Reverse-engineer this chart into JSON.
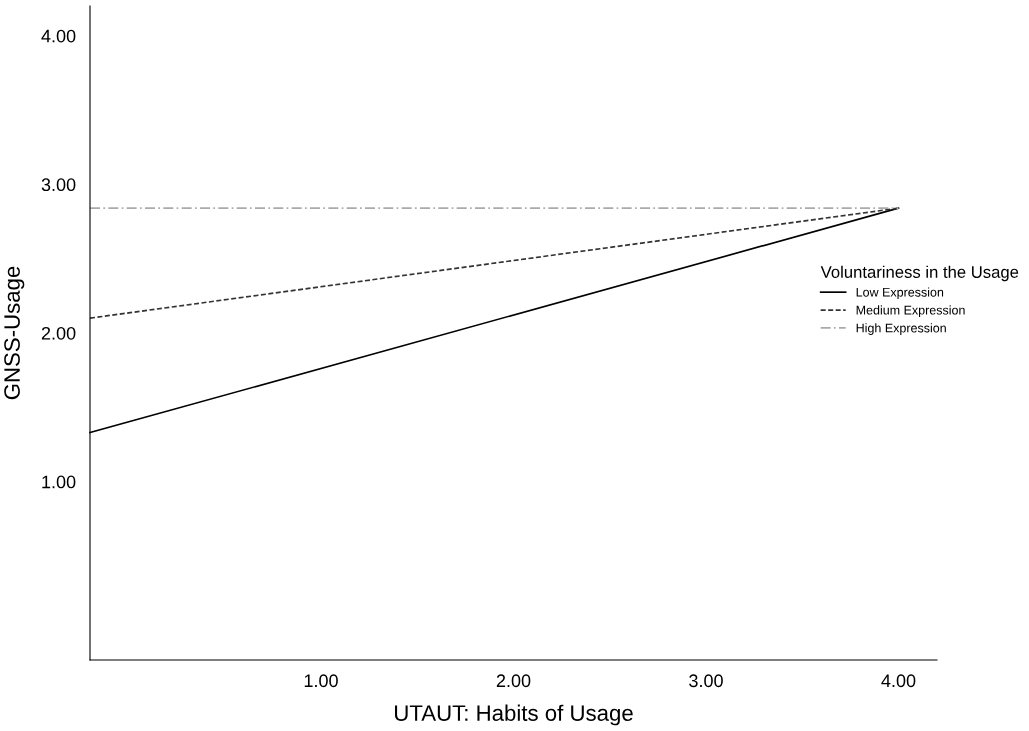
{
  "chart_data": {
    "type": "line",
    "xlabel": "UTAUT: Habits of Usage",
    "ylabel": "GNSS-Usage",
    "legend_title": "Voluntariness in the Usage",
    "xlim": [
      -0.2,
      4.2
    ],
    "ylim": [
      -0.2,
      4.2
    ],
    "xticks": [
      {
        "value": 1,
        "label": "1.00"
      },
      {
        "value": 2,
        "label": "2.00"
      },
      {
        "value": 3,
        "label": "3.00"
      },
      {
        "value": 4,
        "label": "4.00"
      }
    ],
    "yticks": [
      {
        "value": 1,
        "label": "1.00"
      },
      {
        "value": 2,
        "label": "2.00"
      },
      {
        "value": 3,
        "label": "3.00"
      },
      {
        "value": 4,
        "label": "4.00"
      }
    ],
    "x": [
      -0.2,
      4
    ],
    "grid": false,
    "legend": "right",
    "marker": "none",
    "series": [
      {
        "name": "Low Expression",
        "color": "#000000",
        "line_style": "solid",
        "values": [
          1.33,
          2.84
        ]
      },
      {
        "name": "Medium Expression",
        "color": "#333333",
        "line_style": "dashed",
        "values": [
          2.1,
          2.84
        ]
      },
      {
        "name": "High Expression",
        "color": "#aaaaaa",
        "line_style": "dashdot",
        "values": [
          2.84,
          2.84
        ]
      }
    ]
  }
}
